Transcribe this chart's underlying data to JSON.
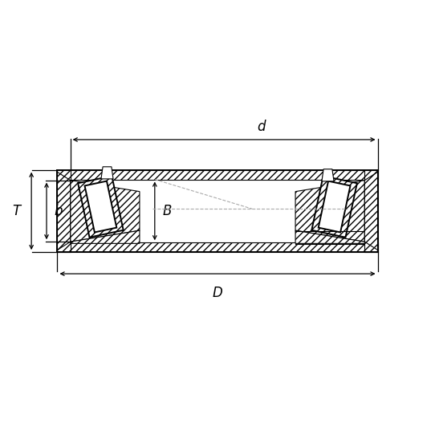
{
  "bg_color": "#ffffff",
  "line_color": "#000000",
  "dashed_color": "#aaaaaa",
  "figsize": [
    5.42,
    5.42
  ],
  "dpi": 100,
  "labels": {
    "D": "D",
    "d": "d",
    "T": "T",
    "B": "B",
    "b": "b"
  },
  "lw_main": 1.4,
  "lw_thin": 0.8,
  "lw_dim": 0.9,
  "fontsize": 12
}
